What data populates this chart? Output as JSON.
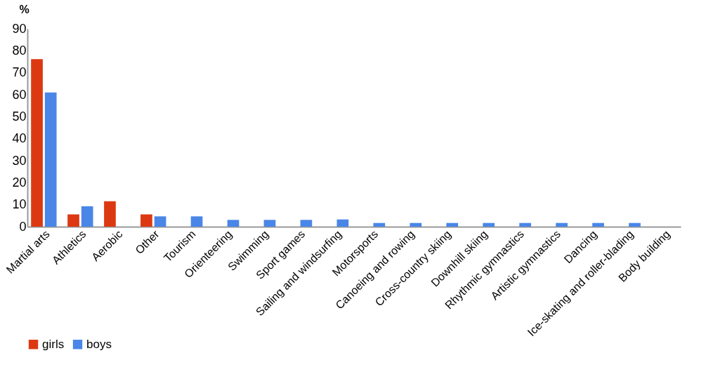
{
  "chart_data": {
    "type": "bar",
    "ylabel": "%",
    "categories": [
      "Martial arts",
      "Athletics",
      "Aerobic",
      "Other",
      "Tourism",
      "Orienteering",
      "Swimming",
      "Sport games",
      "Sailing and windsurfing",
      "Motorsports",
      "Canoeing and rowing",
      "Cross-country skiing",
      "Downhill skiing",
      "Rhythmic gymnastics",
      "Artistic gymnastics",
      "Dancing",
      "Ice-skating and roller-blading",
      "Body building"
    ],
    "series": [
      {
        "name": "girls",
        "color": "#dc3912",
        "values": [
          76.2,
          5.6,
          11.6,
          5.6,
          null,
          null,
          null,
          null,
          null,
          null,
          null,
          null,
          null,
          null,
          null,
          null,
          null,
          null
        ]
      },
      {
        "name": "boys",
        "color": "#4a86e8",
        "values": [
          61,
          9.3,
          null,
          4.7,
          4.7,
          3.1,
          3.1,
          3.1,
          3.3,
          1.7,
          1.7,
          1.7,
          1.7,
          1.7,
          1.7,
          1.7,
          1.7,
          null
        ]
      }
    ],
    "ylim": [
      0,
      90
    ],
    "yticks": [
      0,
      10,
      20,
      30,
      40,
      50,
      60,
      70,
      80,
      90
    ],
    "grid": false,
    "legend": "bottom"
  }
}
